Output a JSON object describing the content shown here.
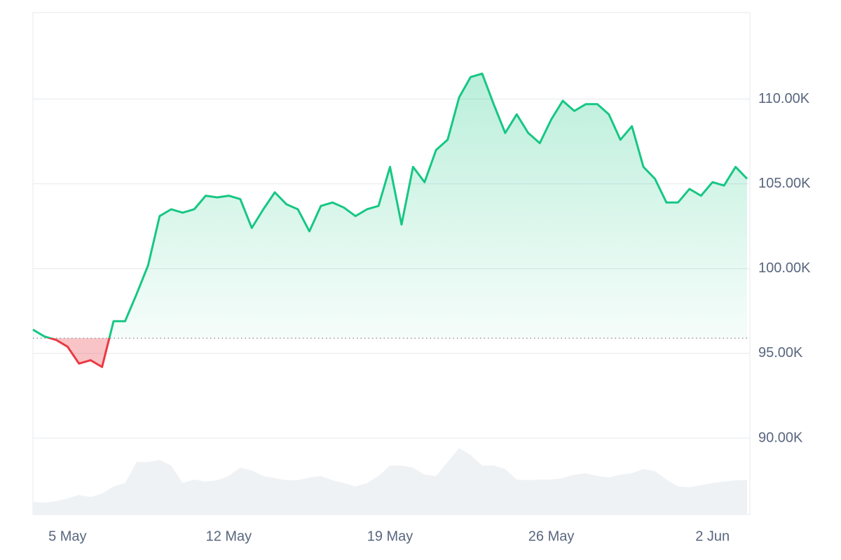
{
  "chart_data": {
    "type": "line",
    "categories": [
      null,
      null,
      null,
      "5 May",
      null,
      null,
      null,
      null,
      null,
      null,
      null,
      null,
      null,
      null,
      null,
      null,
      null,
      "12 May",
      null,
      null,
      null,
      null,
      null,
      null,
      null,
      null,
      null,
      null,
      null,
      null,
      null,
      "19 May",
      null,
      null,
      null,
      null,
      null,
      null,
      null,
      null,
      null,
      null,
      null,
      null,
      null,
      "26 May",
      null,
      null,
      null,
      null,
      null,
      null,
      null,
      null,
      null,
      null,
      null,
      null,
      null,
      "2 Jun",
      null,
      null,
      null
    ],
    "series": [
      {
        "color": "#16c784",
        "values": [
          96400,
          96000,
          95800,
          95400,
          94400,
          94600,
          94200,
          96900,
          96900,
          98500,
          100200,
          103100,
          103500,
          103300,
          103500,
          104300,
          104200,
          104300,
          104100,
          102400,
          103500,
          104500,
          103800,
          103500,
          102200,
          103700,
          103900,
          103600,
          103100,
          103500,
          103700,
          106000,
          102600,
          106000,
          105100,
          107000,
          107600,
          110100,
          111300,
          111500,
          109700,
          108000,
          109100,
          108000,
          107400,
          108800,
          109900,
          109300,
          109700,
          109700,
          109100,
          107600,
          108400,
          106000,
          105300,
          103900,
          103900,
          104700,
          104300,
          105100,
          104900,
          106000,
          105300
        ]
      }
    ],
    "negative_color": "#ea3943",
    "baseline": 95900,
    "volume": {
      "color": "#eff2f5",
      "values": [
        18,
        17,
        19,
        23,
        28,
        25,
        30,
        40,
        45,
        75,
        75,
        78,
        70,
        45,
        50,
        47,
        49,
        55,
        67,
        63,
        55,
        52,
        49,
        49,
        53,
        55,
        49,
        45,
        40,
        45,
        55,
        70,
        70,
        67,
        57,
        55,
        75,
        95,
        85,
        70,
        70,
        65,
        50,
        49,
        50,
        50,
        52,
        57,
        59,
        55,
        53,
        57,
        59,
        65,
        62,
        50,
        40,
        39,
        42,
        45,
        47,
        49,
        49
      ]
    },
    "ylim": [
      85500,
      115100
    ],
    "yticks": [
      {
        "value": 90000,
        "label": "90.00K"
      },
      {
        "value": 95000,
        "label": "95.00K"
      },
      {
        "value": 100000,
        "label": "100.00K"
      },
      {
        "value": 105000,
        "label": "105.00K"
      },
      {
        "value": 110000,
        "label": "110.00K"
      }
    ],
    "grid": true
  }
}
